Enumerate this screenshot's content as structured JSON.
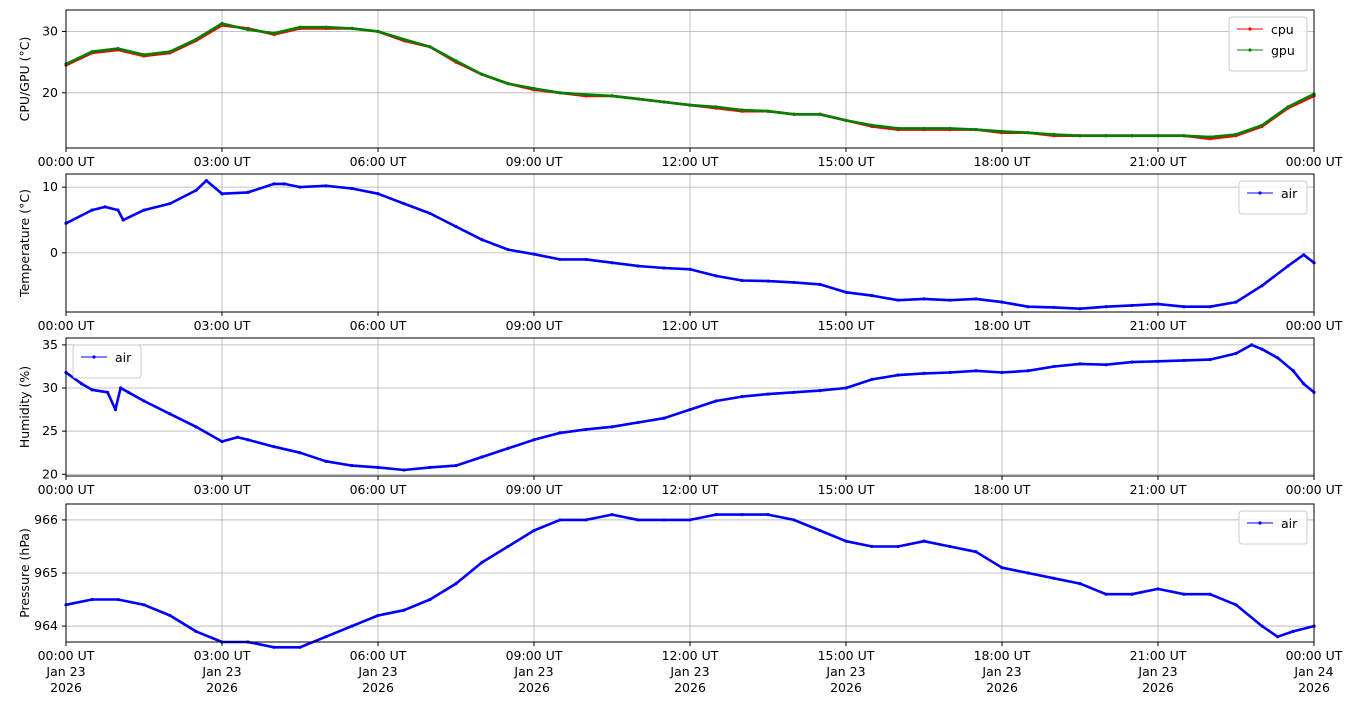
{
  "chart_data": [
    {
      "type": "line",
      "ylabel": "CPU/GPU (°C)",
      "xlim": [
        0,
        24
      ],
      "ylim": [
        11,
        33.5
      ],
      "yticks": [
        20,
        30
      ],
      "xtick_labels": [
        "00:00 UT",
        "03:00 UT",
        "06:00 UT",
        "09:00 UT",
        "12:00 UT",
        "15:00 UT",
        "18:00 UT",
        "21:00 UT",
        "00:00 UT"
      ],
      "grid": true,
      "legend": "top-right",
      "series": [
        {
          "name": "cpu",
          "color": "#ff0000",
          "x": [
            0,
            0.5,
            1,
            1.5,
            2,
            2.5,
            3,
            3.5,
            4,
            4.5,
            5,
            5.5,
            6,
            6.5,
            7,
            7.5,
            8,
            8.5,
            9,
            9.5,
            10,
            10.5,
            11,
            11.5,
            12,
            12.5,
            13,
            13.5,
            14,
            14.5,
            15,
            15.5,
            16,
            16.5,
            17,
            17.5,
            18,
            18.5,
            19,
            19.5,
            20,
            20.5,
            21,
            21.5,
            22,
            22.5,
            23,
            23.5,
            24
          ],
          "values": [
            24.5,
            26.5,
            27,
            26,
            26.5,
            28.5,
            31,
            30.5,
            29.5,
            30.5,
            30.5,
            30.5,
            30,
            28.5,
            27.5,
            25,
            23,
            21.5,
            20.5,
            20,
            19.5,
            19.5,
            19,
            18.5,
            18,
            17.5,
            17,
            17,
            16.5,
            16.5,
            15.5,
            14.5,
            14,
            14,
            14,
            14,
            13.5,
            13.5,
            13,
            13,
            13,
            13,
            13,
            13,
            12.5,
            13,
            14.5,
            17.5,
            19.5
          ]
        },
        {
          "name": "gpu",
          "color": "#008000",
          "x": [
            0,
            0.5,
            1,
            1.5,
            2,
            2.5,
            3,
            3.5,
            4,
            4.5,
            5,
            5.5,
            6,
            6.5,
            7,
            7.5,
            8,
            8.5,
            9,
            9.5,
            10,
            10.5,
            11,
            11.5,
            12,
            12.5,
            13,
            13.5,
            14,
            14.5,
            15,
            15.5,
            16,
            16.5,
            17,
            17.5,
            18,
            18.5,
            19,
            19.5,
            20,
            20.5,
            21,
            21.5,
            22,
            22.5,
            23,
            23.5,
            24
          ],
          "values": [
            24.7,
            26.7,
            27.2,
            26.2,
            26.7,
            28.7,
            31.3,
            30.3,
            29.7,
            30.7,
            30.7,
            30.5,
            30,
            28.7,
            27.5,
            25.2,
            23,
            21.5,
            20.7,
            20,
            19.7,
            19.5,
            19,
            18.5,
            18,
            17.7,
            17.2,
            17,
            16.5,
            16.5,
            15.5,
            14.7,
            14.2,
            14.2,
            14.2,
            14,
            13.7,
            13.5,
            13.2,
            13,
            13,
            13,
            13,
            13,
            12.8,
            13.2,
            14.7,
            17.7,
            19.8
          ]
        }
      ]
    },
    {
      "type": "line",
      "ylabel": "Temperature (°C)",
      "xlim": [
        0,
        24
      ],
      "ylim": [
        -9,
        12
      ],
      "yticks": [
        0,
        10
      ],
      "xtick_labels": [
        "00:00 UT",
        "03:00 UT",
        "06:00 UT",
        "09:00 UT",
        "12:00 UT",
        "15:00 UT",
        "18:00 UT",
        "21:00 UT",
        "00:00 UT"
      ],
      "grid": true,
      "legend": "top-right",
      "series": [
        {
          "name": "air",
          "color": "#0000ff",
          "x": [
            0,
            0.5,
            0.75,
            1,
            1.1,
            1.5,
            2,
            2.5,
            2.7,
            3,
            3.5,
            4,
            4.2,
            4.5,
            5,
            5.5,
            6,
            6.5,
            7,
            7.5,
            8,
            8.5,
            9,
            9.5,
            10,
            10.5,
            11,
            11.5,
            12,
            12.5,
            13,
            13.5,
            14,
            14.5,
            15,
            15.5,
            16,
            16.5,
            17,
            17.5,
            18,
            18.5,
            19,
            19.5,
            20,
            20.5,
            21,
            21.5,
            22,
            22.5,
            23,
            23.5,
            23.8,
            24
          ],
          "values": [
            4.5,
            6.5,
            7,
            6.5,
            5,
            6.5,
            7.5,
            9.5,
            11,
            9,
            9.2,
            10.5,
            10.5,
            10,
            10.2,
            9.8,
            9,
            7.5,
            6,
            4,
            2,
            0.5,
            -0.2,
            -1,
            -1,
            -1.5,
            -2,
            -2.3,
            -2.5,
            -3.5,
            -4.2,
            -4.3,
            -4.5,
            -4.8,
            -6,
            -6.5,
            -7.2,
            -7,
            -7.2,
            -7,
            -7.5,
            -8.2,
            -8.3,
            -8.5,
            -8.2,
            -8,
            -7.8,
            -8.2,
            -8.2,
            -7.5,
            -5,
            -2,
            -0.3,
            -1.5
          ]
        }
      ]
    },
    {
      "type": "line",
      "ylabel": "Humidity (%)",
      "xlim": [
        0,
        24
      ],
      "ylim": [
        19.8,
        35.8
      ],
      "yticks": [
        20,
        25,
        30,
        35
      ],
      "xtick_labels": [
        "00:00 UT",
        "03:00 UT",
        "06:00 UT",
        "09:00 UT",
        "12:00 UT",
        "15:00 UT",
        "18:00 UT",
        "21:00 UT",
        "00:00 UT"
      ],
      "grid": true,
      "legend": "top-left",
      "series": [
        {
          "name": "air",
          "color": "#0000ff",
          "x": [
            0,
            0.3,
            0.5,
            0.8,
            0.95,
            1.05,
            1.2,
            1.5,
            2,
            2.5,
            3,
            3.3,
            3.5,
            4,
            4.5,
            5,
            5.5,
            6,
            6.5,
            7,
            7.5,
            8,
            8.5,
            9,
            9.5,
            10,
            10.5,
            11,
            11.5,
            12,
            12.5,
            13,
            13.5,
            14,
            14.5,
            15,
            15.5,
            16,
            16.5,
            17,
            17.5,
            18,
            18.5,
            19,
            19.5,
            20,
            20.5,
            21,
            21.5,
            22,
            22.5,
            22.8,
            23,
            23.3,
            23.6,
            23.8,
            24
          ],
          "values": [
            31.8,
            30.5,
            29.8,
            29.5,
            27.5,
            30,
            29.5,
            28.5,
            27,
            25.5,
            23.8,
            24.3,
            24,
            23.2,
            22.5,
            21.5,
            21,
            20.8,
            20.5,
            20.8,
            21,
            22,
            23,
            24,
            24.8,
            25.2,
            25.5,
            26,
            26.5,
            27.5,
            28.5,
            29,
            29.3,
            29.5,
            29.7,
            30,
            31,
            31.5,
            31.7,
            31.8,
            32,
            31.8,
            32,
            32.5,
            32.8,
            32.7,
            33,
            33.1,
            33.2,
            33.3,
            34,
            35,
            34.5,
            33.5,
            32,
            30.5,
            29.5
          ]
        }
      ]
    },
    {
      "type": "line",
      "ylabel": "Pressure (hPa)",
      "xlim": [
        0,
        24
      ],
      "ylim": [
        963.7,
        966.3
      ],
      "yticks": [
        964,
        965,
        966
      ],
      "xtick_labels": [
        "00:00 UT",
        "03:00 UT",
        "06:00 UT",
        "09:00 UT",
        "12:00 UT",
        "15:00 UT",
        "18:00 UT",
        "21:00 UT",
        "00:00 UT"
      ],
      "xtick_date_labels": [
        "Jan 23",
        "Jan 23",
        "Jan 23",
        "Jan 23",
        "Jan 23",
        "Jan 23",
        "Jan 23",
        "Jan 23",
        "Jan 24"
      ],
      "xtick_year_labels": [
        "2026",
        "2026",
        "2026",
        "2026",
        "2026",
        "2026",
        "2026",
        "2026",
        "2026"
      ],
      "grid": true,
      "legend": "top-right",
      "series": [
        {
          "name": "air",
          "color": "#0000ff",
          "x": [
            0,
            0.5,
            1,
            1.5,
            2,
            2.5,
            3,
            3.5,
            4,
            4.5,
            5,
            5.5,
            6,
            6.5,
            7,
            7.5,
            8,
            8.5,
            9,
            9.5,
            10,
            10.5,
            11,
            11.5,
            12,
            12.5,
            13,
            13.5,
            14,
            14.5,
            15,
            15.5,
            16,
            16.5,
            17,
            17.5,
            18,
            18.5,
            19,
            19.5,
            20,
            20.5,
            21,
            21.5,
            22,
            22.5,
            23,
            23.3,
            23.6,
            24
          ],
          "values": [
            964.4,
            964.5,
            964.5,
            964.4,
            964.2,
            963.9,
            963.7,
            963.7,
            963.6,
            963.6,
            963.8,
            964,
            964.2,
            964.3,
            964.5,
            964.8,
            965.2,
            965.5,
            965.8,
            966,
            966,
            966.1,
            966,
            966,
            966,
            966.1,
            966.1,
            966.1,
            966,
            965.8,
            965.6,
            965.5,
            965.5,
            965.6,
            965.5,
            965.4,
            965.1,
            965,
            964.9,
            964.8,
            964.6,
            964.6,
            964.7,
            964.6,
            964.6,
            964.4,
            964,
            963.8,
            963.9,
            964
          ]
        }
      ]
    }
  ]
}
